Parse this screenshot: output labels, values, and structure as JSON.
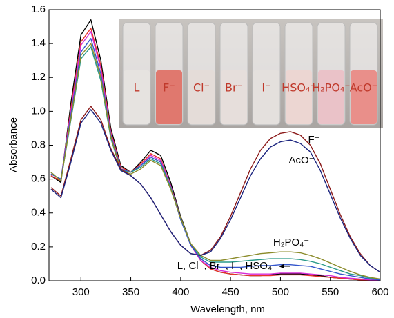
{
  "chart_data": {
    "type": "line",
    "xlabel": "Wavelength, nm",
    "ylabel": "Absorbance",
    "xlim": [
      268,
      600
    ],
    "ylim": [
      0,
      1.6
    ],
    "xticks": [
      300,
      350,
      400,
      450,
      500,
      550,
      600
    ],
    "yticks": [
      {
        "value": 0,
        "label": "0.0"
      },
      {
        "value": 0.2,
        "label": "0.2"
      },
      {
        "value": 0.4,
        "label": "0.4"
      },
      {
        "value": 0.6,
        "label": "0.6"
      },
      {
        "value": 0.8,
        "label": "0.8"
      },
      {
        "value": 1.0,
        "label": "1.0"
      },
      {
        "value": 1.2,
        "label": "1.2"
      },
      {
        "value": 1.4,
        "label": "1.4"
      },
      {
        "value": 1.6,
        "label": "1.6"
      }
    ],
    "x": [
      270,
      280,
      290,
      300,
      310,
      320,
      330,
      340,
      350,
      360,
      370,
      380,
      390,
      400,
      410,
      420,
      430,
      440,
      450,
      460,
      470,
      480,
      490,
      500,
      510,
      520,
      530,
      540,
      550,
      560,
      570,
      580,
      590,
      600
    ],
    "series": [
      {
        "color": "#000000",
        "values": [
          0.62,
          0.58,
          1.05,
          1.45,
          1.54,
          1.3,
          0.9,
          0.68,
          0.64,
          0.7,
          0.77,
          0.74,
          0.58,
          0.38,
          0.22,
          0.12,
          0.07,
          0.05,
          0.04,
          0.035,
          0.03,
          0.03,
          0.035,
          0.04,
          0.04,
          0.04,
          0.035,
          0.03,
          0.02,
          0.015,
          0.01,
          0.005,
          0,
          0
        ]
      },
      {
        "color": "#e8322a",
        "values": [
          0.62,
          0.59,
          1.02,
          1.41,
          1.49,
          1.27,
          0.88,
          0.67,
          0.64,
          0.69,
          0.75,
          0.72,
          0.56,
          0.37,
          0.21,
          0.12,
          0.07,
          0.05,
          0.04,
          0.035,
          0.03,
          0.03,
          0.03,
          0.035,
          0.035,
          0.035,
          0.03,
          0.025,
          0.02,
          0.015,
          0.01,
          0.005,
          0,
          0
        ]
      },
      {
        "color": "#d62ad6",
        "values": [
          0.63,
          0.6,
          1.0,
          1.39,
          1.47,
          1.25,
          0.87,
          0.66,
          0.64,
          0.68,
          0.74,
          0.71,
          0.56,
          0.37,
          0.21,
          0.12,
          0.08,
          0.06,
          0.05,
          0.045,
          0.04,
          0.04,
          0.04,
          0.045,
          0.045,
          0.045,
          0.04,
          0.035,
          0.03,
          0.02,
          0.015,
          0.01,
          0.005,
          0
        ]
      },
      {
        "color": "#3355cc",
        "values": [
          0.63,
          0.6,
          0.98,
          1.35,
          1.43,
          1.22,
          0.86,
          0.66,
          0.64,
          0.68,
          0.73,
          0.7,
          0.55,
          0.36,
          0.21,
          0.13,
          0.09,
          0.08,
          0.08,
          0.08,
          0.085,
          0.09,
          0.09,
          0.095,
          0.095,
          0.09,
          0.085,
          0.07,
          0.055,
          0.04,
          0.03,
          0.02,
          0.01,
          0.005
        ]
      },
      {
        "color": "#2a9a8a",
        "values": [
          0.64,
          0.59,
          0.95,
          1.31,
          1.38,
          1.18,
          0.84,
          0.65,
          0.64,
          0.67,
          0.72,
          0.69,
          0.55,
          0.37,
          0.22,
          0.14,
          0.11,
          0.11,
          0.11,
          0.115,
          0.12,
          0.125,
          0.13,
          0.13,
          0.13,
          0.125,
          0.115,
          0.1,
          0.08,
          0.06,
          0.04,
          0.03,
          0.015,
          0.01
        ]
      },
      {
        "color": "#8b8b2a",
        "values": [
          0.64,
          0.59,
          0.96,
          1.33,
          1.4,
          1.2,
          0.85,
          0.65,
          0.63,
          0.66,
          0.71,
          0.68,
          0.54,
          0.37,
          0.22,
          0.15,
          0.12,
          0.12,
          0.13,
          0.14,
          0.15,
          0.16,
          0.165,
          0.17,
          0.17,
          0.165,
          0.15,
          0.13,
          0.105,
          0.08,
          0.055,
          0.035,
          0.02,
          0.01
        ]
      },
      {
        "color": "#8b1a1a",
        "values": [
          0.55,
          0.5,
          0.72,
          0.95,
          1.03,
          0.95,
          0.78,
          0.66,
          0.62,
          0.57,
          0.49,
          0.39,
          0.29,
          0.21,
          0.16,
          0.15,
          0.18,
          0.26,
          0.38,
          0.52,
          0.66,
          0.77,
          0.84,
          0.87,
          0.88,
          0.86,
          0.8,
          0.69,
          0.54,
          0.39,
          0.26,
          0.16,
          0.09,
          0.05
        ]
      },
      {
        "color": "#1a237e",
        "values": [
          0.54,
          0.49,
          0.7,
          0.93,
          1.01,
          0.93,
          0.77,
          0.65,
          0.62,
          0.57,
          0.49,
          0.39,
          0.29,
          0.21,
          0.16,
          0.15,
          0.17,
          0.25,
          0.36,
          0.49,
          0.62,
          0.72,
          0.79,
          0.82,
          0.83,
          0.81,
          0.76,
          0.65,
          0.51,
          0.37,
          0.25,
          0.15,
          0.09,
          0.05
        ]
      }
    ],
    "annotations": [
      "F⁻",
      "AcO⁻",
      "H₂PO₄⁻",
      "L, Cl⁻, Br⁻, I⁻, HSO₄⁻"
    ]
  },
  "inset": {
    "labels": [
      "L",
      "F⁻",
      "Cl⁻",
      "Br⁻",
      "I⁻",
      "HSO₄⁻",
      "H₂PO₄⁻",
      "AcO⁻"
    ]
  }
}
